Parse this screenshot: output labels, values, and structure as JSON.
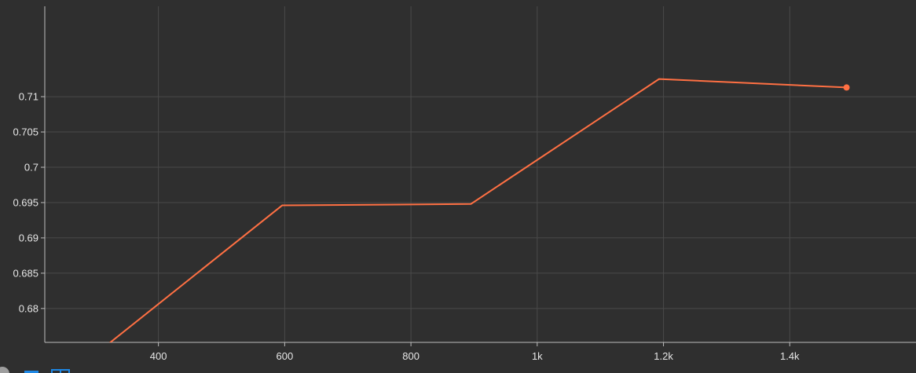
{
  "chart_data": {
    "type": "line",
    "title": "",
    "xlabel": "",
    "ylabel": "",
    "xlim": [
      220,
      1600
    ],
    "ylim": [
      0.6752,
      0.7228
    ],
    "x_ticks": [
      {
        "value": 400,
        "label": "400"
      },
      {
        "value": 600,
        "label": "600"
      },
      {
        "value": 800,
        "label": "800"
      },
      {
        "value": 1000,
        "label": "1k"
      },
      {
        "value": 1200,
        "label": "1.2k"
      },
      {
        "value": 1400,
        "label": "1.4k"
      }
    ],
    "y_ticks": [
      {
        "value": 0.68,
        "label": "0.68"
      },
      {
        "value": 0.685,
        "label": "0.685"
      },
      {
        "value": 0.69,
        "label": "0.69"
      },
      {
        "value": 0.695,
        "label": "0.695"
      },
      {
        "value": 0.7,
        "label": "0.7"
      },
      {
        "value": 0.705,
        "label": "0.705"
      },
      {
        "value": 0.71,
        "label": "0.71"
      }
    ],
    "grid": true,
    "series": [
      {
        "color": "#ff7043",
        "x": [
          300,
          596,
          895,
          1193,
          1490
        ],
        "y": [
          0.6735,
          0.6946,
          0.6948,
          0.7125,
          0.7113
        ]
      }
    ],
    "last_point_marker": true
  },
  "toolbar": {
    "icons": [
      "fit-domain-icon",
      "download-icon",
      "zoom-icon"
    ],
    "colors": {
      "left": "#9e9e9e",
      "middle": "#1e88e5",
      "right": "#1e88e5"
    }
  }
}
